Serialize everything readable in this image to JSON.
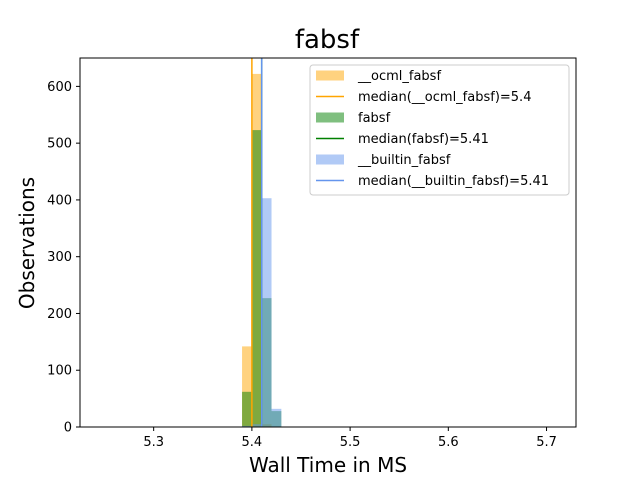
{
  "chart_data": {
    "type": "histogram",
    "title": "fabsf",
    "xlabel": "Wall Time in MS",
    "ylabel": "Observations",
    "xlim": [
      5.225,
      5.73
    ],
    "ylim": [
      0,
      650
    ],
    "xticks": [
      5.3,
      5.4,
      5.5,
      5.6,
      5.7
    ],
    "yticks": [
      0,
      100,
      200,
      300,
      400,
      500,
      600
    ],
    "grid": false,
    "legend_position": "top-right",
    "bin_width": 0.01,
    "series": [
      {
        "name": "__ocml_fabsf",
        "color": "#ffa500",
        "opacity": 0.5,
        "bins": [
          [
            5.39,
            5.4,
            142
          ],
          [
            5.4,
            5.41,
            622
          ],
          [
            5.41,
            5.42,
            5
          ]
        ],
        "median": 5.4,
        "median_label": "median(__ocml_fabsf)=5.4",
        "median_color": "#ffa500"
      },
      {
        "name": "fabsf",
        "color": "#008000",
        "opacity": 0.5,
        "bins": [
          [
            5.39,
            5.4,
            62
          ],
          [
            5.4,
            5.41,
            523
          ],
          [
            5.41,
            5.42,
            227
          ],
          [
            5.42,
            5.43,
            28
          ]
        ],
        "median": 5.41,
        "median_label": "median(fabsf)=5.41",
        "median_color": "#008000"
      },
      {
        "name": "__builtin_fabsf",
        "color": "#6495ed",
        "opacity": 0.5,
        "bins": [
          [
            5.39,
            5.4,
            2
          ],
          [
            5.4,
            5.41,
            5
          ],
          [
            5.41,
            5.42,
            403
          ],
          [
            5.42,
            5.43,
            32
          ]
        ],
        "median": 5.41,
        "median_label": "median(__builtin_fabsf)=5.41",
        "median_color": "#6495ed"
      }
    ]
  }
}
